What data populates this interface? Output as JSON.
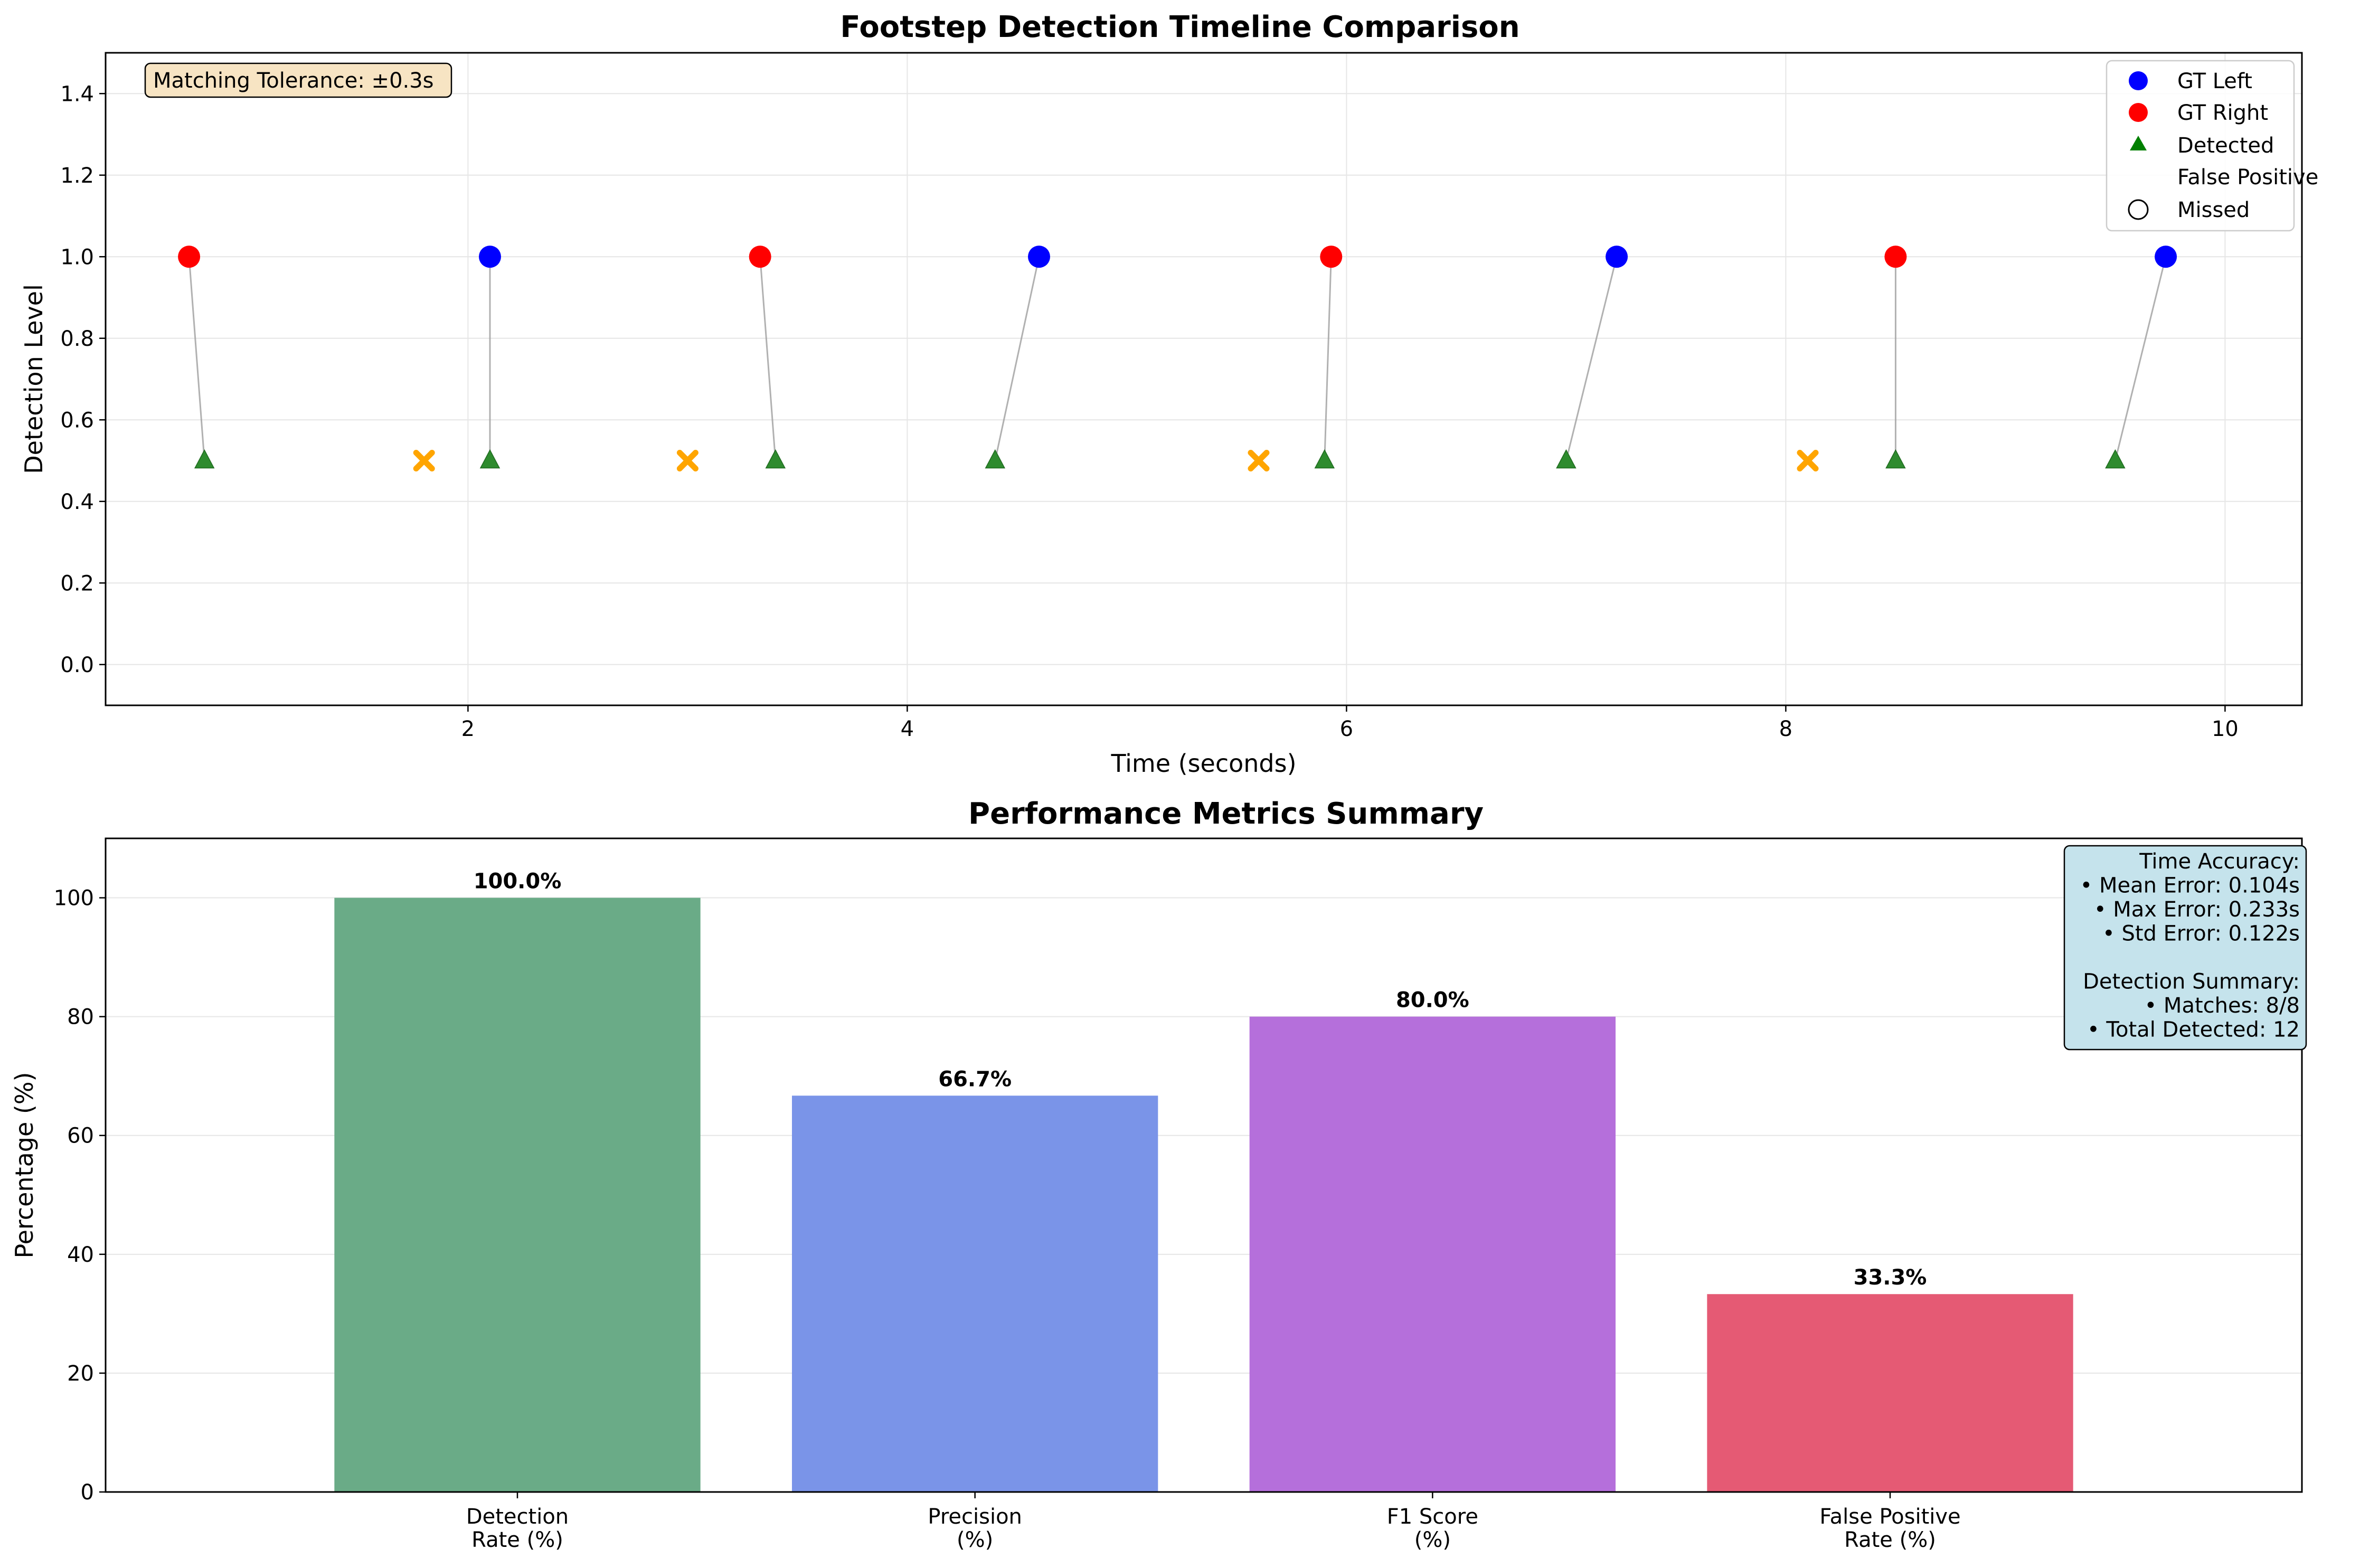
{
  "chart_data": [
    {
      "type": "scatter",
      "title": "Footstep Detection Timeline Comparison",
      "xlabel": "Time (seconds)",
      "ylabel": "Detection Level",
      "xlim": [
        0.35,
        10.35
      ],
      "ylim": [
        -0.1,
        1.5
      ],
      "xticks": [
        "2",
        "4",
        "6",
        "8",
        "10"
      ],
      "yticks": [
        "0.0",
        "0.2",
        "0.4",
        "0.6",
        "0.8",
        "1.0",
        "1.2",
        "1.4"
      ],
      "grid": true,
      "legend_position": "top-right",
      "legend": [
        "GT Left",
        "GT Right",
        "Detected",
        "False Positive",
        "Missed"
      ],
      "annotation": "Matching Tolerance: ±0.3s",
      "series": [
        {
          "name": "GT Left",
          "color": "#0000ff",
          "x": [
            2.1,
            4.6,
            7.23,
            9.73
          ],
          "y": [
            1,
            1,
            1,
            1
          ]
        },
        {
          "name": "GT Right",
          "color": "#ff0000",
          "x": [
            0.73,
            3.33,
            5.93,
            8.5
          ],
          "y": [
            1,
            1,
            1,
            1
          ]
        },
        {
          "name": "Detected",
          "color": "#2ca02c",
          "x": [
            0.8,
            2.1,
            3.4,
            4.4,
            5.9,
            7.0,
            8.5,
            9.5
          ],
          "y": [
            0.5,
            0.5,
            0.5,
            0.5,
            0.5,
            0.5,
            0.5,
            0.5
          ]
        },
        {
          "name": "False Positive",
          "color": "#ffa500",
          "x": [
            1.8,
            3.0,
            5.6,
            8.1
          ],
          "y": [
            0.5,
            0.5,
            0.5,
            0.5
          ]
        }
      ],
      "matches": [
        [
          0.73,
          0.8
        ],
        [
          2.1,
          2.1
        ],
        [
          3.33,
          3.4
        ],
        [
          4.6,
          4.4
        ],
        [
          5.93,
          5.9
        ],
        [
          7.23,
          7.0
        ],
        [
          8.5,
          8.5
        ],
        [
          9.73,
          9.5
        ]
      ]
    },
    {
      "type": "bar",
      "title": "Performance Metrics Summary",
      "xlabel": "",
      "ylabel": "Percentage (%)",
      "ylim": [
        0,
        110
      ],
      "yticks": [
        "0",
        "20",
        "40",
        "60",
        "80",
        "100"
      ],
      "grid": true,
      "categories": [
        [
          "Detection",
          "Rate (%)"
        ],
        [
          "Precision",
          "(%)"
        ],
        [
          "F1 Score",
          "(%)"
        ],
        [
          "False Positive",
          "Rate (%)"
        ]
      ],
      "values": [
        100.0,
        66.7,
        80.0,
        33.3
      ],
      "value_labels": [
        "100.0%",
        "66.7%",
        "80.0%",
        "33.3%"
      ],
      "colors": [
        "#6aab87",
        "#7a94e8",
        "#b56fdb",
        "#e55a74"
      ],
      "info_box": [
        "Time Accuracy:",
        "• Mean Error: 0.104s",
        "• Max Error: 0.233s",
        "• Std Error: 0.122s",
        "",
        "Detection Summary:",
        "• Matches: 8/8",
        "• Total Detected: 12"
      ]
    }
  ]
}
